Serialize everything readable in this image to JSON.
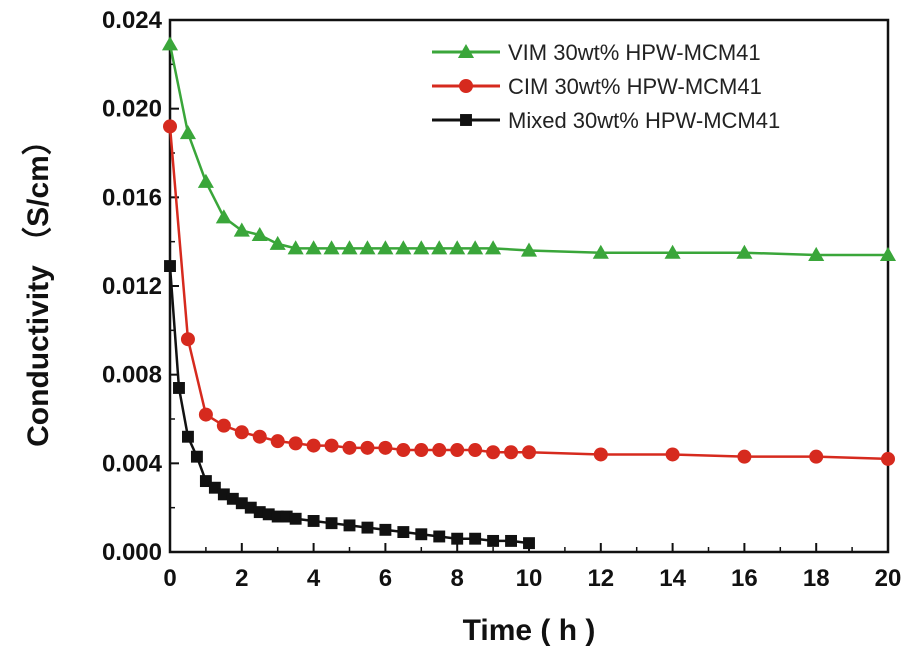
{
  "chart_data": {
    "type": "line",
    "xlabel": "Time ( h )",
    "ylabel": "Conductivity （S/cm）",
    "xlim": [
      0,
      20
    ],
    "ylim": [
      0,
      0.024
    ],
    "xticks": [
      0,
      2,
      4,
      6,
      8,
      10,
      12,
      14,
      16,
      18,
      20
    ],
    "xtick_labels": [
      "0",
      "2",
      "4",
      "6",
      "8",
      "10",
      "12",
      "14",
      "16",
      "18",
      "20"
    ],
    "yticks": [
      0,
      0.004,
      0.008,
      0.012,
      0.016,
      0.02,
      0.024
    ],
    "ytick_labels": [
      "0.000",
      "0.004",
      "0.008",
      "0.012",
      "0.016",
      "0.020",
      "0.024"
    ],
    "grid": false,
    "legend_position": "top-right",
    "series": [
      {
        "name": "VIM 30wt% HPW-MCM41",
        "color": "#3aa63a",
        "marker": "triangle",
        "x": [
          0,
          0.5,
          1,
          1.5,
          2,
          2.5,
          3,
          3.5,
          4,
          4.5,
          5,
          5.5,
          6,
          6.5,
          7,
          7.5,
          8,
          8.5,
          9,
          10,
          12,
          14,
          16,
          18,
          20
        ],
        "y": [
          0.0229,
          0.0189,
          0.0167,
          0.0151,
          0.0145,
          0.0143,
          0.0139,
          0.0137,
          0.0137,
          0.0137,
          0.0137,
          0.0137,
          0.0137,
          0.0137,
          0.0137,
          0.0137,
          0.0137,
          0.0137,
          0.0137,
          0.0136,
          0.0135,
          0.0135,
          0.0135,
          0.0134,
          0.0134
        ]
      },
      {
        "name": "CIM 30wt% HPW-MCM41",
        "color": "#d62a1e",
        "marker": "circle",
        "x": [
          0,
          0.5,
          1,
          1.5,
          2,
          2.5,
          3,
          3.5,
          4,
          4.5,
          5,
          5.5,
          6,
          6.5,
          7,
          7.5,
          8,
          8.5,
          9,
          9.5,
          10,
          12,
          14,
          16,
          18,
          20
        ],
        "y": [
          0.0192,
          0.0096,
          0.0062,
          0.0057,
          0.0054,
          0.0052,
          0.005,
          0.0049,
          0.0048,
          0.0048,
          0.0047,
          0.0047,
          0.0047,
          0.0046,
          0.0046,
          0.0046,
          0.0046,
          0.0046,
          0.0045,
          0.0045,
          0.0045,
          0.0044,
          0.0044,
          0.0043,
          0.0043,
          0.0042
        ]
      },
      {
        "name": "Mixed 30wt% HPW-MCM41",
        "color": "#111111",
        "marker": "square",
        "x": [
          0,
          0.25,
          0.5,
          0.75,
          1,
          1.25,
          1.5,
          1.75,
          2,
          2.25,
          2.5,
          2.75,
          3,
          3.25,
          3.5,
          4,
          4.5,
          5,
          5.5,
          6,
          6.5,
          7,
          7.5,
          8,
          8.5,
          9,
          9.5,
          10
        ],
        "y": [
          0.0129,
          0.0074,
          0.0052,
          0.0043,
          0.0032,
          0.0029,
          0.0026,
          0.0024,
          0.0022,
          0.002,
          0.0018,
          0.0017,
          0.0016,
          0.0016,
          0.0015,
          0.0014,
          0.0013,
          0.0012,
          0.0011,
          0.001,
          0.0009,
          0.0008,
          0.0007,
          0.0006,
          0.0006,
          0.0005,
          0.0005,
          0.0004
        ]
      }
    ]
  }
}
